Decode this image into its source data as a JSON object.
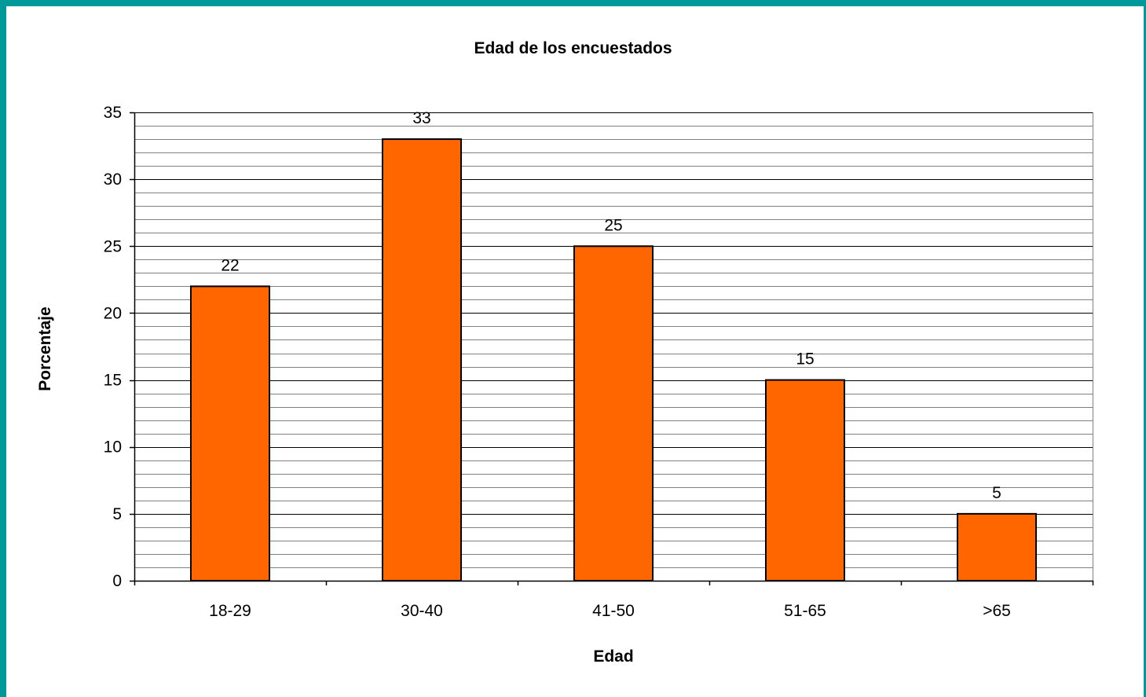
{
  "colors": {
    "frame": "#009999",
    "bar_fill": "#FF6600",
    "bar_stroke": "#000000",
    "major_grid": "#000000",
    "minor_grid": "#808080",
    "background": "#FFFFFF"
  },
  "chart_data": {
    "type": "bar",
    "title": "Edad de los encuestados",
    "xlabel": "Edad",
    "ylabel": "Porcentaje",
    "categories": [
      "18-29",
      "30-40",
      "41-50",
      "51-65",
      ">65"
    ],
    "values": [
      22,
      33,
      25,
      15,
      5
    ],
    "data_labels": [
      "22",
      "33",
      "25",
      "15",
      "5"
    ],
    "ylim": [
      0,
      35
    ],
    "y_major_ticks": [
      0,
      5,
      10,
      15,
      20,
      25,
      30,
      35
    ],
    "y_tick_labels": [
      "0",
      "5",
      "10",
      "15",
      "20",
      "25",
      "30",
      "35"
    ],
    "y_minor_step": 1,
    "grid": true,
    "legend": "none"
  }
}
